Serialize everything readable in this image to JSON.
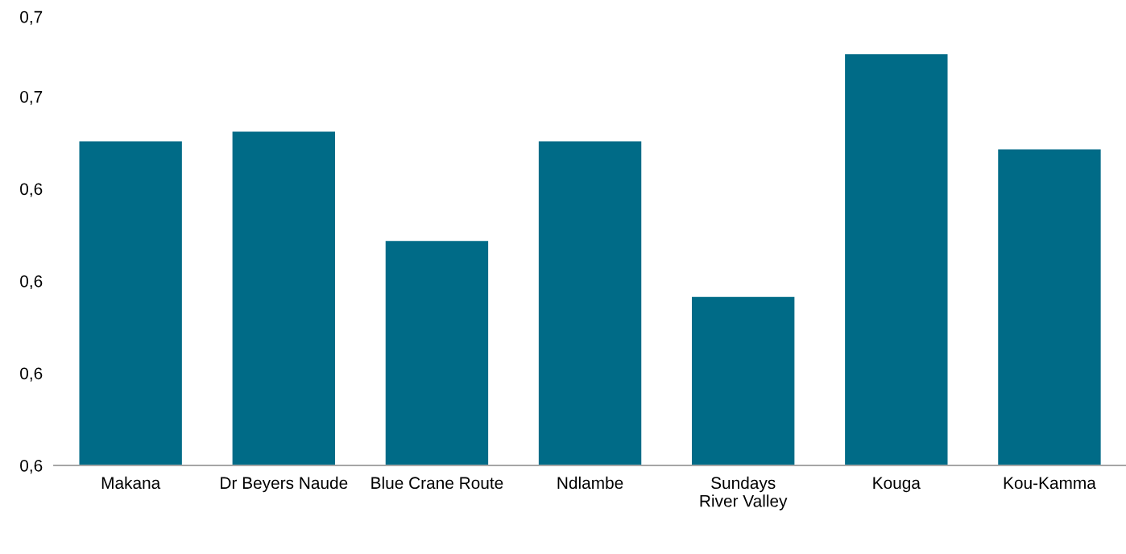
{
  "chart_data": {
    "type": "bar",
    "categories": [
      "Makana",
      "Dr Beyers Naude",
      "Blue Crane Route",
      "Ndlambe",
      "Sundays River Valley",
      "Kouga",
      "Kou-Kamma"
    ],
    "values": [
      0.6527,
      0.6543,
      0.6365,
      0.6527,
      0.6274,
      0.6669,
      0.6514
    ],
    "color": "#006b87",
    "ylim": [
      0.6,
      0.673
    ],
    "yticks": [
      {
        "value": 0.6,
        "label": "0,6"
      },
      {
        "value": 0.615,
        "label": "0,6"
      },
      {
        "value": 0.63,
        "label": "0,6"
      },
      {
        "value": 0.645,
        "label": "0,6"
      },
      {
        "value": 0.66,
        "label": "0,7"
      },
      {
        "value": 0.673,
        "label": "0,7"
      }
    ],
    "grid": false,
    "legend": false
  }
}
